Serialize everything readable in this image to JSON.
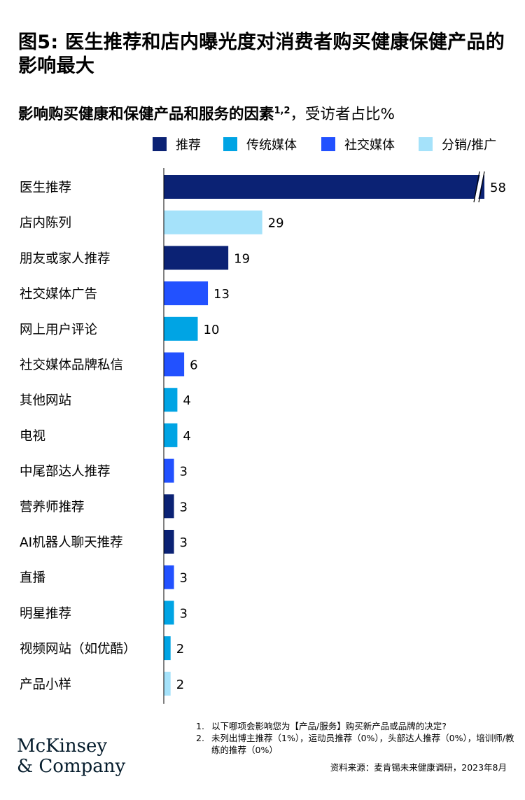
{
  "title": "图5: 医生推荐和店内曝光度对消费者购买健康保健产品的影响最大",
  "subtitle": {
    "main": "影响购买健康和保健产品和服务的因素",
    "sup": "1,2",
    "suffix": "，受访者占比%"
  },
  "legend": [
    {
      "label": "推荐",
      "color": "#0b2274"
    },
    {
      "label": "传统媒体",
      "color": "#00a4e4"
    },
    {
      "label": "社交媒体",
      "color": "#2251ff"
    },
    {
      "label": "分销/推广",
      "color": "#a5e2fa"
    }
  ],
  "chart_data": {
    "type": "bar",
    "orientation": "horizontal",
    "categories": [
      "医生推荐",
      "店内陈列",
      "朋友或家人推荐",
      "社交媒体广告",
      "网上用户评论",
      "社交媒体品牌私信",
      "其他网站",
      "电视",
      "中尾部达人推荐",
      "营养师推荐",
      "AI机器人聊天推荐",
      "直播",
      "明星推荐",
      "视频网站（如优酷）",
      "产品小样"
    ],
    "values": [
      58,
      29,
      19,
      13,
      10,
      6,
      4,
      4,
      3,
      3,
      3,
      3,
      3,
      2,
      2
    ],
    "groups": [
      "推荐",
      "分销/推广",
      "推荐",
      "社交媒体",
      "传统媒体",
      "社交媒体",
      "传统媒体",
      "传统媒体",
      "社交媒体",
      "推荐",
      "推荐",
      "社交媒体",
      "传统媒体",
      "传统媒体",
      "分销/推广"
    ],
    "axis_break": "医生推荐",
    "grid": false
  },
  "footnotes": [
    {
      "num": "1.",
      "text": "以下哪项会影响您为【产品/服务】购买新产品或品牌的决定?"
    },
    {
      "num": "2.",
      "text": "未列出博主推荐（1%），运动员推荐（0%），头部达人推荐（0%），培训师/教练的推荐（0%）"
    }
  ],
  "source": "资料来源：麦肯锡未来健康调研，2023年8月",
  "logo": {
    "line1": "McKinsey",
    "line2": "& Company"
  }
}
